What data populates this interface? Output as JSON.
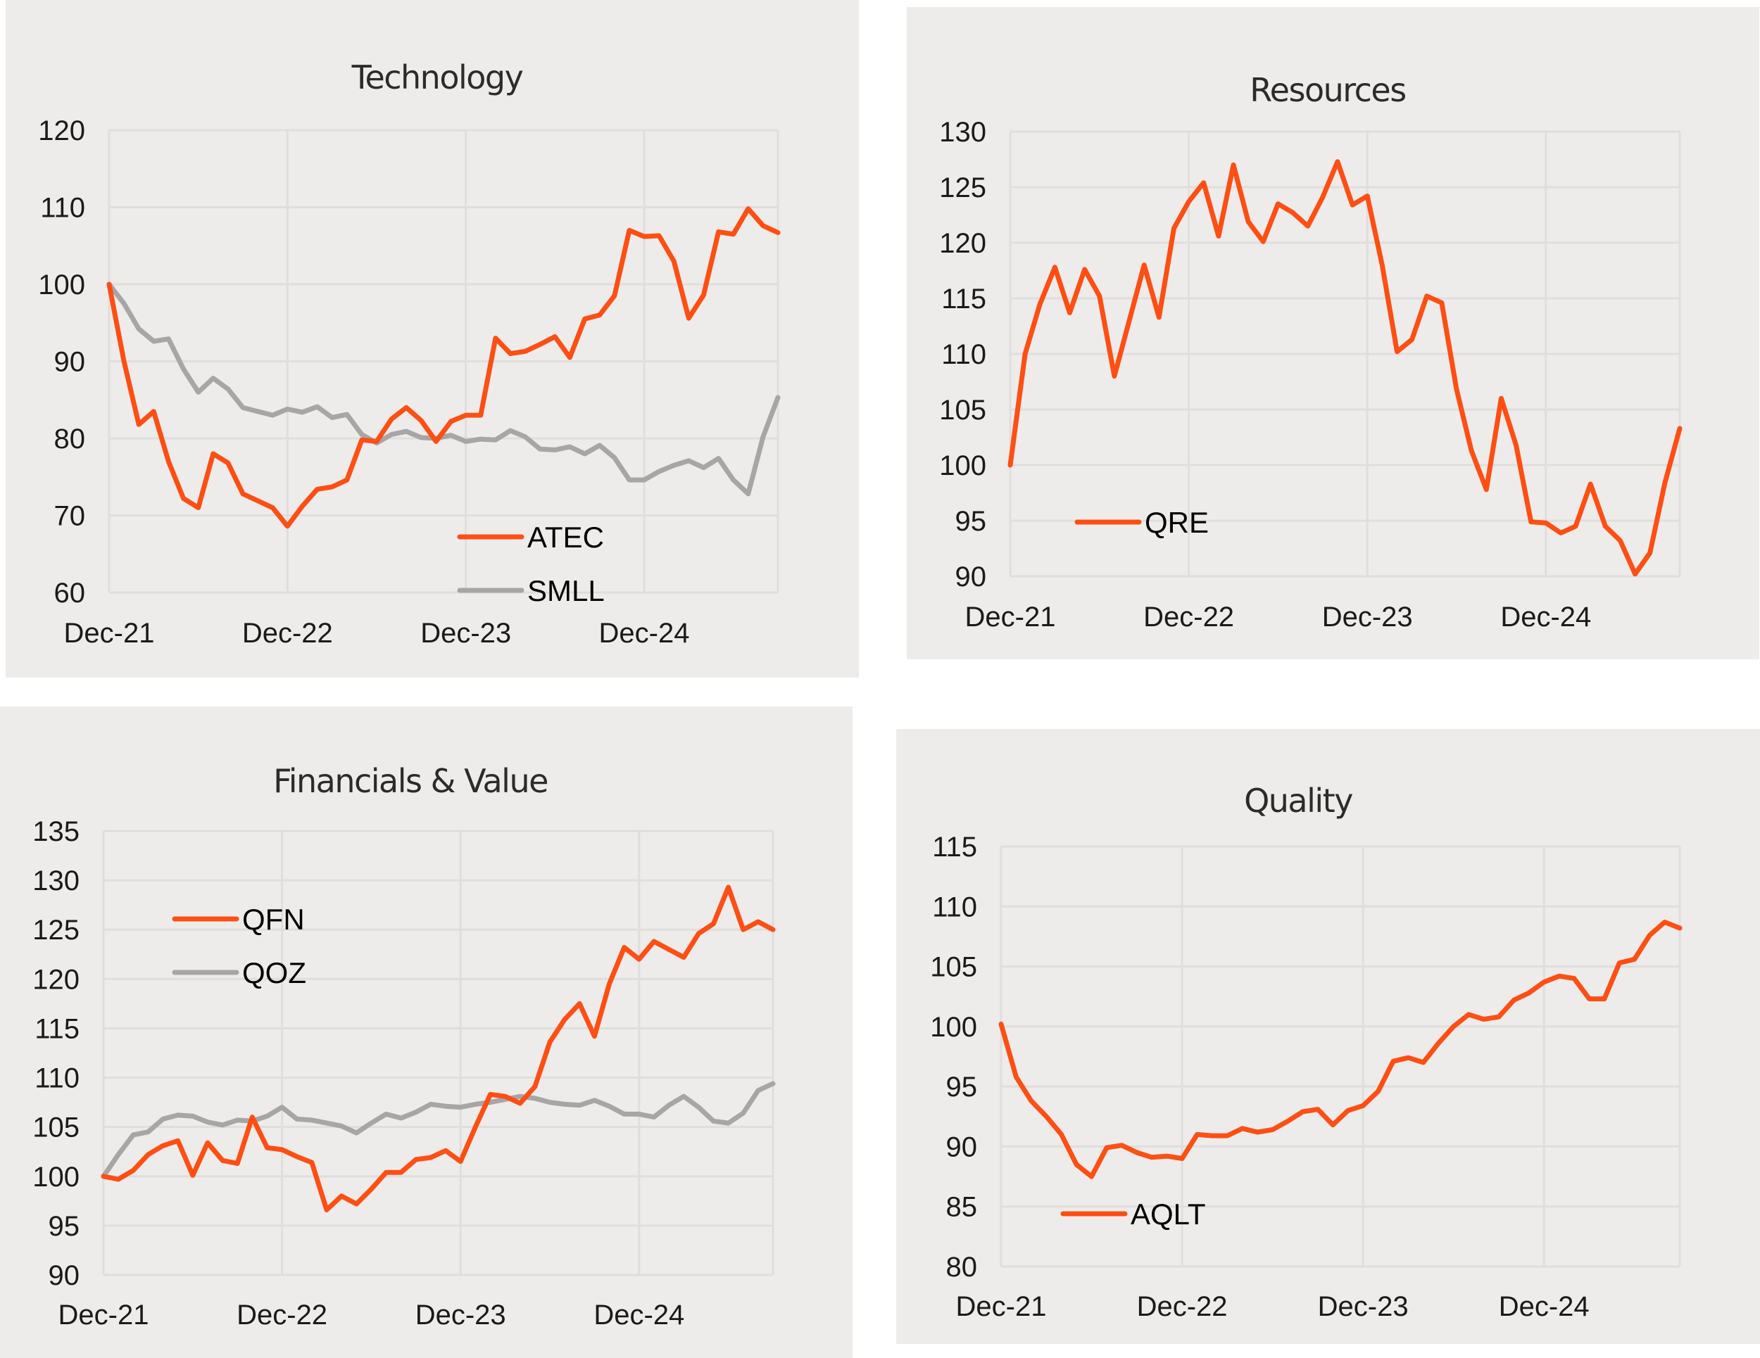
{
  "colors": {
    "accent": "#FF4F14",
    "secondary": "#A6A6A6",
    "panel_background": "#EEECEA",
    "gridline": "#E0DEDB"
  },
  "chart_data": [
    {
      "type": "line",
      "title": "Technology",
      "xlabel": "",
      "ylabel": "",
      "x_start": "Dec-21",
      "x_end": "Sep-25",
      "frequency": "monthly",
      "x_tick_labels": [
        "Dec-21",
        "Dec-22",
        "Dec-23",
        "Dec-24"
      ],
      "y_tick_labels": [
        "60",
        "70",
        "80",
        "90",
        "100",
        "110",
        "120"
      ],
      "ylim": [
        60,
        120
      ],
      "grid": true,
      "legend_placement": "bottom-right",
      "series": [
        {
          "name": "ATEC",
          "color": "#FF4F14",
          "values": [
            100,
            90,
            81.8,
            83.5,
            77,
            72.2,
            71,
            78,
            76.8,
            72.8,
            71.9,
            71,
            68.6,
            71.2,
            73.4,
            73.7,
            74.6,
            79.8,
            79.6,
            82.5,
            84,
            82.3,
            79.6,
            82.2,
            83,
            83,
            93,
            91,
            91.3,
            92.2,
            93.2,
            90.5,
            95.5,
            96,
            98.5,
            107,
            106.2,
            106.3,
            103,
            95.6,
            98.6,
            106.8,
            106.5,
            109.8,
            107.6,
            106.7
          ]
        },
        {
          "name": "SMLL",
          "color": "#A6A6A6",
          "values": [
            100,
            97.5,
            94.2,
            92.6,
            92.9,
            89,
            86,
            87.8,
            86.4,
            84,
            83.5,
            83,
            83.8,
            83.4,
            84.1,
            82.7,
            83.1,
            80.5,
            79.4,
            80.5,
            80.9,
            80.1,
            80,
            80.4,
            79.6,
            79.9,
            79.8,
            81,
            80.2,
            78.6,
            78.5,
            78.9,
            78,
            79.1,
            77.5,
            74.6,
            74.6,
            75.7,
            76.5,
            77.1,
            76.2,
            77.4,
            74.6,
            72.8,
            80.2,
            85.3
          ]
        }
      ]
    },
    {
      "type": "line",
      "title": "Resources",
      "xlabel": "",
      "ylabel": "",
      "x_start": "Dec-21",
      "x_end": "Sep-25",
      "frequency": "monthly",
      "x_tick_labels": [
        "Dec-21",
        "Dec-22",
        "Dec-23",
        "Dec-24"
      ],
      "y_tick_labels": [
        "90",
        "95",
        "100",
        "105",
        "110",
        "115",
        "120",
        "125",
        "130"
      ],
      "ylim": [
        90,
        130
      ],
      "grid": true,
      "legend_placement": "bottom-left",
      "series": [
        {
          "name": "QRE",
          "color": "#FF4F14",
          "values": [
            100,
            110,
            114.5,
            117.8,
            113.7,
            117.6,
            115.2,
            108,
            113,
            118,
            113.3,
            121.3,
            123.7,
            125.4,
            120.6,
            127,
            121.9,
            120.1,
            123.5,
            122.7,
            121.5,
            124.1,
            127.3,
            123.4,
            124.2,
            118,
            110.2,
            111.3,
            115.2,
            114.6,
            106.8,
            101.3,
            97.8,
            106,
            101.8,
            94.9,
            94.8,
            93.9,
            94.5,
            98.3,
            94.5,
            93.2,
            90.2,
            92.1,
            98.4,
            103.3
          ]
        }
      ]
    },
    {
      "type": "line",
      "title": "Financials & Value",
      "xlabel": "",
      "ylabel": "",
      "x_start": "Dec-21",
      "x_end": "Sep-25",
      "frequency": "monthly",
      "x_tick_labels": [
        "Dec-21",
        "Dec-22",
        "Dec-23",
        "Dec-24"
      ],
      "y_tick_labels": [
        "90",
        "95",
        "100",
        "105",
        "110",
        "115",
        "120",
        "125",
        "130",
        "135"
      ],
      "ylim": [
        90,
        135
      ],
      "grid": true,
      "legend_placement": "top-left",
      "series": [
        {
          "name": "QFN",
          "color": "#FF4F14",
          "values": [
            100,
            99.7,
            100.6,
            102.2,
            103.1,
            103.6,
            100.1,
            103.4,
            101.6,
            101.3,
            106,
            102.9,
            102.7,
            102,
            101.4,
            96.6,
            98,
            97.2,
            98.7,
            100.4,
            100.4,
            101.7,
            101.9,
            102.6,
            101.5,
            105,
            108.3,
            108.1,
            107.4,
            109.1,
            113.6,
            115.9,
            117.5,
            114.2,
            119.5,
            123.2,
            122,
            123.8,
            123,
            122.2,
            124.6,
            125.6,
            129.3,
            125,
            125.8,
            125
          ]
        },
        {
          "name": "QOZ",
          "color": "#A6A6A6",
          "values": [
            100,
            102.2,
            104.2,
            104.5,
            105.8,
            106.2,
            106.1,
            105.5,
            105.2,
            105.7,
            105.6,
            106.1,
            107,
            105.8,
            105.7,
            105.4,
            105.1,
            104.4,
            105.4,
            106.3,
            105.9,
            106.5,
            107.3,
            107.1,
            107,
            107.3,
            107.5,
            107.8,
            108.1,
            107.9,
            107.5,
            107.3,
            107.2,
            107.7,
            107.1,
            106.3,
            106.3,
            106,
            107.2,
            108.1,
            107,
            105.6,
            105.4,
            106.4,
            108.7,
            109.4
          ]
        }
      ]
    },
    {
      "type": "line",
      "title": "Quality",
      "xlabel": "",
      "ylabel": "",
      "x_start": "Dec-21",
      "x_end": "Sep-25",
      "frequency": "monthly",
      "x_tick_labels": [
        "Dec-21",
        "Dec-22",
        "Dec-23",
        "Dec-24"
      ],
      "y_tick_labels": [
        "80",
        "85",
        "90",
        "95",
        "100",
        "105",
        "110",
        "115"
      ],
      "ylim": [
        80,
        115
      ],
      "grid": true,
      "legend_placement": "bottom-left",
      "series": [
        {
          "name": "AQLT",
          "color": "#FF4F14",
          "values": [
            100.2,
            95.8,
            93.8,
            92.5,
            91,
            88.5,
            87.5,
            89.9,
            90.1,
            89.5,
            89.1,
            89.2,
            89,
            91,
            90.9,
            90.9,
            91.5,
            91.2,
            91.4,
            92.1,
            92.9,
            93.1,
            91.8,
            93,
            93.4,
            94.6,
            97.1,
            97.4,
            97,
            98.6,
            100,
            101,
            100.6,
            100.8,
            102.2,
            102.8,
            103.7,
            104.2,
            104,
            102.3,
            102.3,
            105.3,
            105.6,
            107.6,
            108.7,
            108.2
          ]
        }
      ]
    }
  ]
}
